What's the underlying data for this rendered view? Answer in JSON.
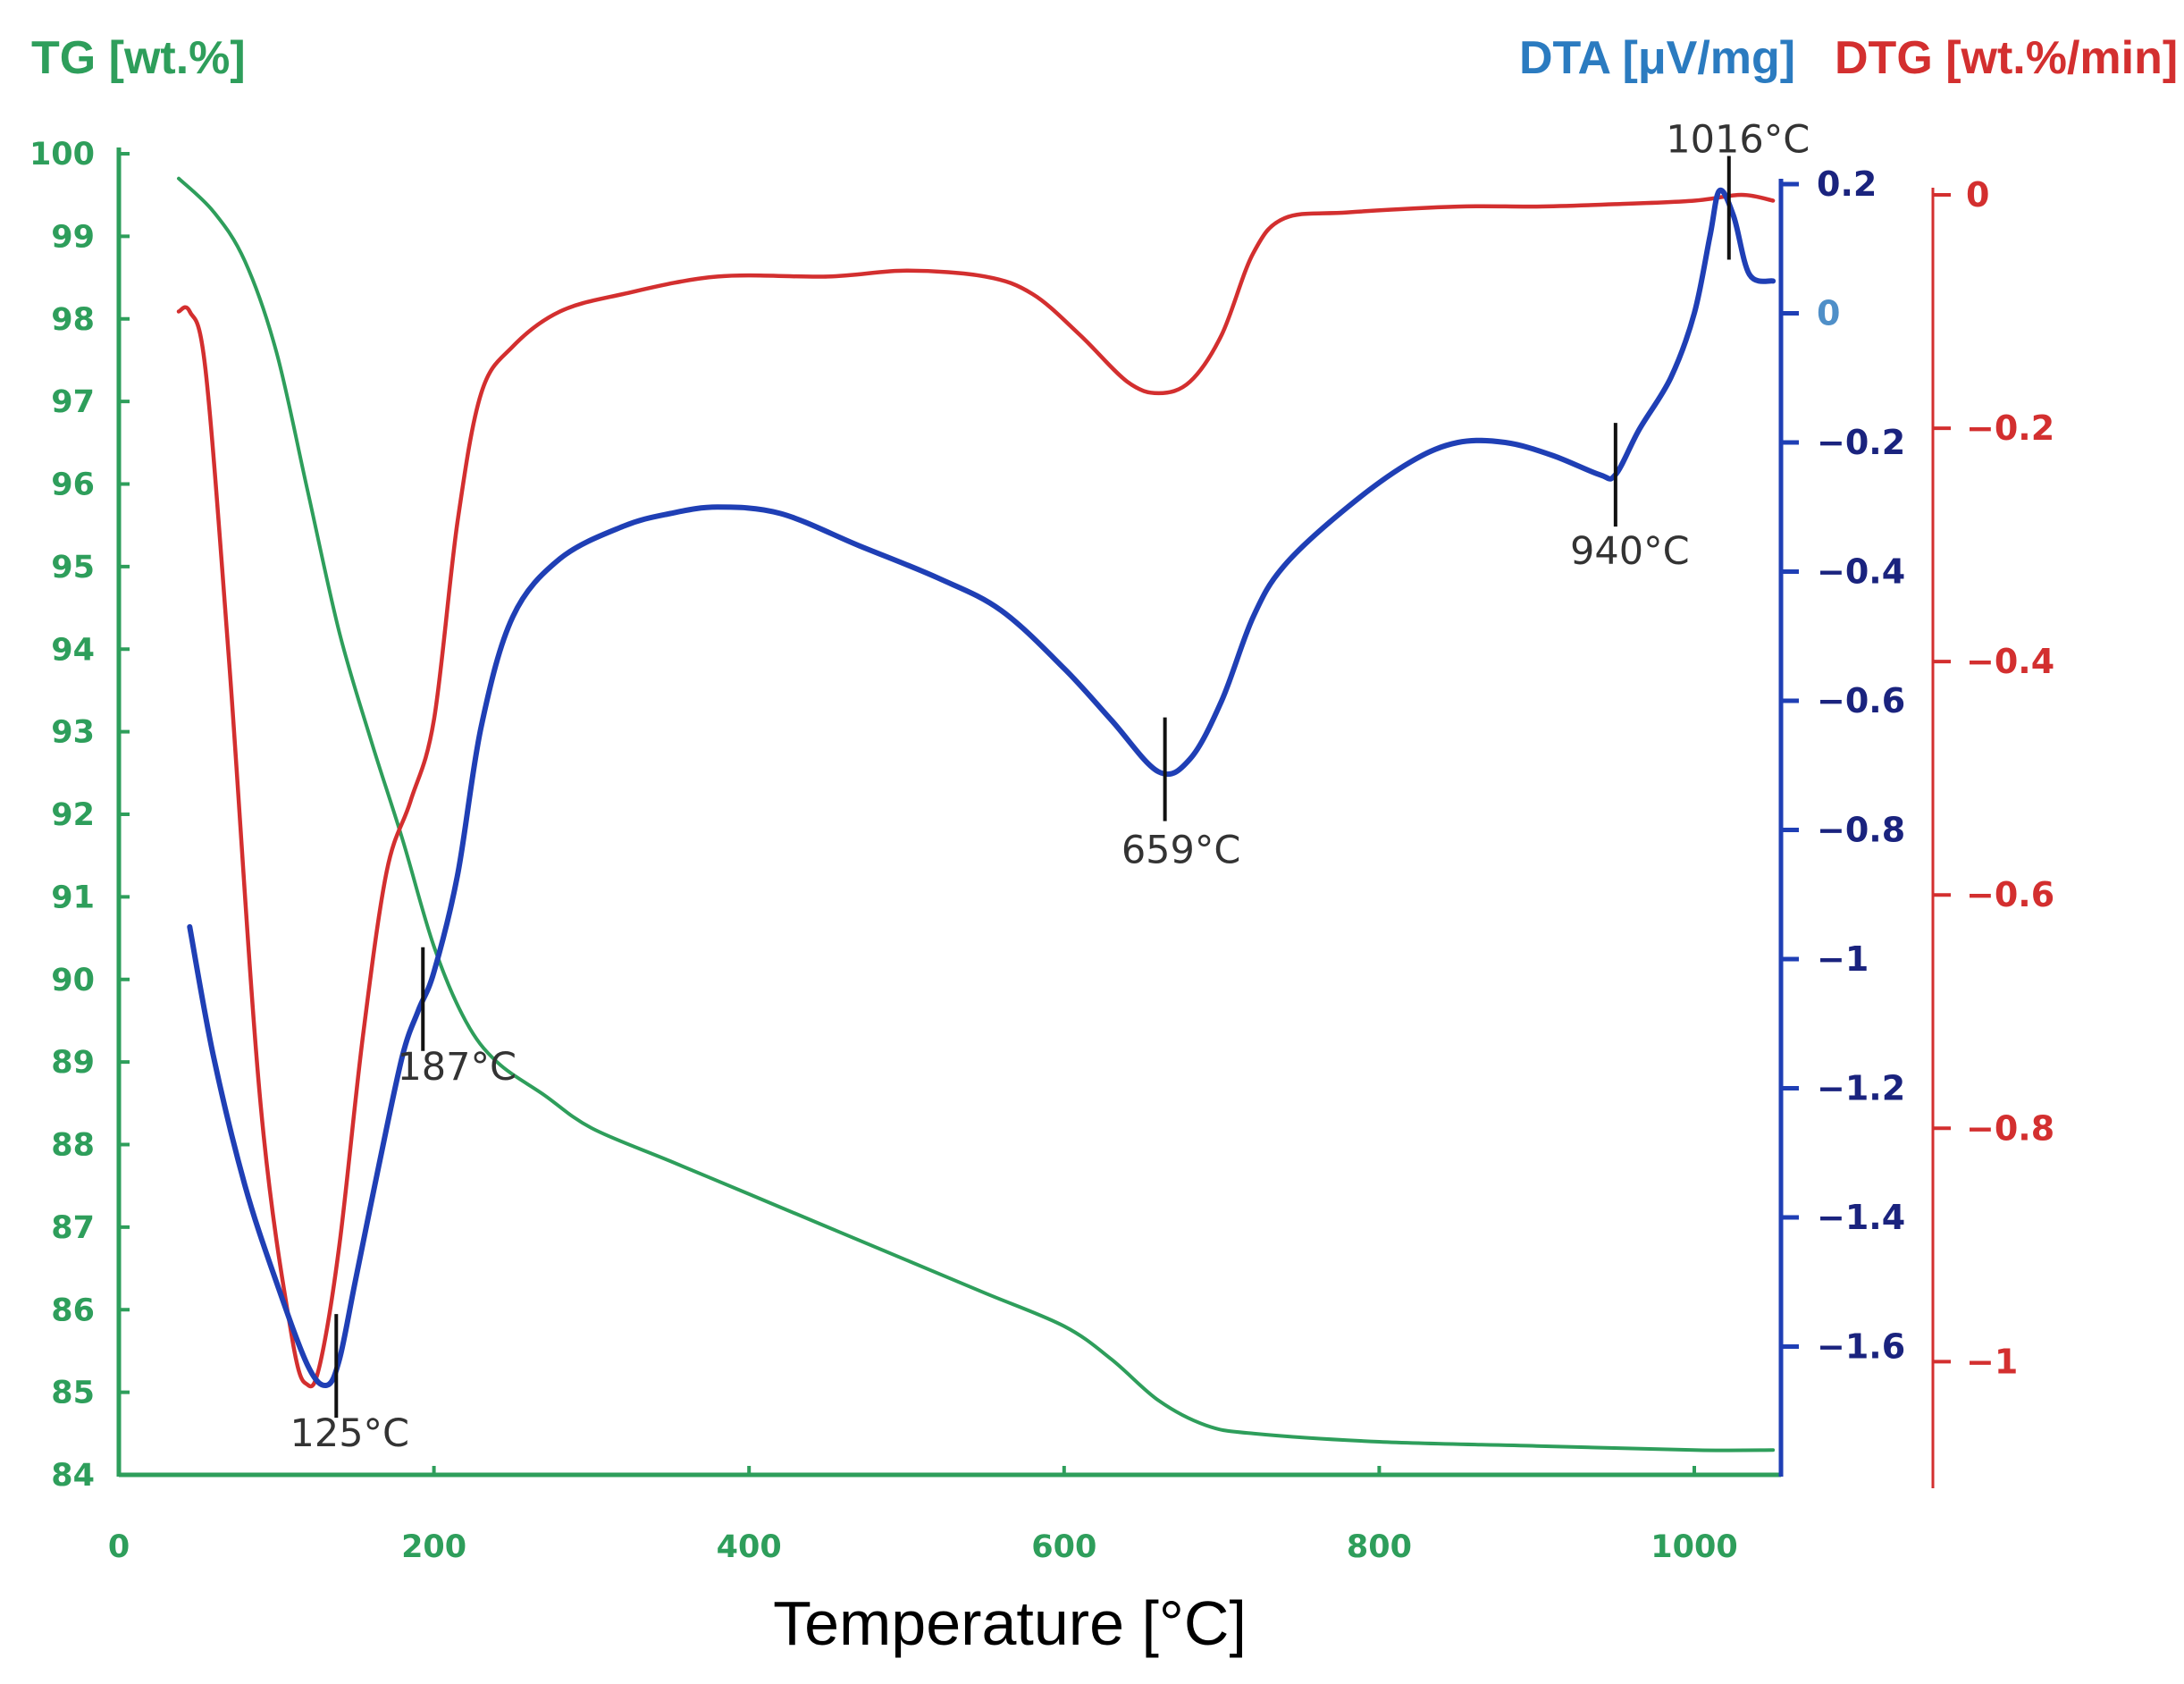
{
  "chart_data": {
    "type": "line",
    "xlabel": "Temperature  [°C]",
    "xlim": [
      0,
      1050
    ],
    "x_ticks": [
      0,
      200,
      400,
      600,
      800,
      1000
    ],
    "axes": {
      "tg": {
        "label": "TG [wt.%]",
        "color": "#2e9e5b",
        "ylim": [
          84,
          100
        ],
        "ticks": [
          84,
          85,
          86,
          87,
          88,
          89,
          90,
          91,
          92,
          93,
          94,
          95,
          96,
          97,
          98,
          99,
          100
        ]
      },
      "dta": {
        "label": "DTA [μV/mg]",
        "color": "#1f3fb5",
        "tick_color": "#1a237e",
        "title_color": "#2b7bc0",
        "ylim": [
          -1.8,
          0.2
        ],
        "ticks": [
          0.2,
          -0.2,
          -0.4,
          -0.6,
          -0.8,
          -1,
          -1.2,
          -1.4,
          -1.6
        ],
        "tick_labels": [
          "0.2",
          "−0.2",
          "−0.4",
          "−0.6",
          "−0.8",
          "−1",
          "−1.2",
          "−1.4",
          "−1.6"
        ],
        "zero_label": "0",
        "zero_color": "#4f8fc8"
      },
      "dtg": {
        "label": "DTG [wt.%/min]",
        "color": "#d32f2f",
        "ylim": [
          -1.12,
          0.0
        ],
        "ticks": [
          0,
          -0.2,
          -0.4,
          -0.6,
          -0.8,
          -1
        ],
        "tick_labels": [
          "0",
          "−0.2",
          "−0.4",
          "−0.6",
          "−0.8",
          "−1"
        ]
      }
    },
    "series": [
      {
        "name": "TG",
        "axis": "tg",
        "color": "#2e9e5b",
        "x": [
          38,
          60,
          80,
          100,
          120,
          140,
          160,
          180,
          200,
          220,
          240,
          270,
          300,
          350,
          400,
          450,
          500,
          550,
          600,
          630,
          660,
          690,
          720,
          800,
          900,
          1000,
          1050
        ],
        "y": [
          99.7,
          99.3,
          98.7,
          97.6,
          95.9,
          94.2,
          92.9,
          91.7,
          90.4,
          89.5,
          89.0,
          88.6,
          88.2,
          87.8,
          87.4,
          87.0,
          86.6,
          86.2,
          85.8,
          85.4,
          84.9,
          84.6,
          84.5,
          84.4,
          84.35,
          84.3,
          84.3
        ]
      },
      {
        "name": "DTA",
        "axis": "dta",
        "color": "#1f3fb5",
        "x": [
          45,
          60,
          80,
          100,
          120,
          132,
          140,
          150,
          165,
          180,
          190,
          200,
          215,
          230,
          250,
          280,
          320,
          350,
          380,
          420,
          470,
          520,
          560,
          600,
          630,
          660,
          680,
          700,
          720,
          740,
          780,
          820,
          850,
          880,
          910,
          940,
          950,
          965,
          985,
          1000,
          1010,
          1016,
          1025,
          1035,
          1050
        ],
        "y": [
          -0.95,
          -1.15,
          -1.35,
          -1.5,
          -1.63,
          -1.66,
          -1.62,
          -1.5,
          -1.32,
          -1.15,
          -1.08,
          -1.02,
          -0.87,
          -0.64,
          -0.47,
          -0.38,
          -0.33,
          -0.31,
          -0.3,
          -0.31,
          -0.36,
          -0.41,
          -0.46,
          -0.55,
          -0.63,
          -0.71,
          -0.69,
          -0.6,
          -0.47,
          -0.39,
          -0.3,
          -0.23,
          -0.2,
          -0.2,
          -0.22,
          -0.25,
          -0.25,
          -0.18,
          -0.1,
          0.0,
          0.12,
          0.19,
          0.15,
          0.06,
          0.05
        ]
      },
      {
        "name": "DTG",
        "axis": "dtg",
        "color": "#d32f2f",
        "x": [
          38,
          45,
          55,
          70,
          90,
          110,
          120,
          128,
          140,
          155,
          170,
          185,
          200,
          215,
          230,
          250,
          280,
          320,
          380,
          450,
          500,
          550,
          580,
          610,
          640,
          660,
          680,
          700,
          720,
          740,
          780,
          850,
          900,
          950,
          1000,
          1030,
          1050
        ],
        "y": [
          -0.1,
          -0.1,
          -0.15,
          -0.4,
          -0.78,
          -0.98,
          -1.02,
          -1.0,
          -0.9,
          -0.72,
          -0.58,
          -0.52,
          -0.45,
          -0.28,
          -0.17,
          -0.13,
          -0.1,
          -0.085,
          -0.07,
          -0.07,
          -0.065,
          -0.07,
          -0.085,
          -0.12,
          -0.16,
          -0.17,
          -0.16,
          -0.12,
          -0.05,
          -0.02,
          -0.015,
          -0.01,
          -0.01,
          -0.008,
          -0.005,
          0.0,
          -0.005
        ]
      }
    ],
    "annotations": [
      {
        "text": "125°C",
        "x": 138,
        "curve": "DTA"
      },
      {
        "text": "187°C",
        "x": 193,
        "curve": "DTA"
      },
      {
        "text": "659°C",
        "x": 664,
        "curve": "DTA"
      },
      {
        "text": "940°C",
        "x": 950,
        "curve": "DTA"
      },
      {
        "text": "1016°C",
        "x": 1022,
        "curve": "DTA"
      }
    ]
  }
}
